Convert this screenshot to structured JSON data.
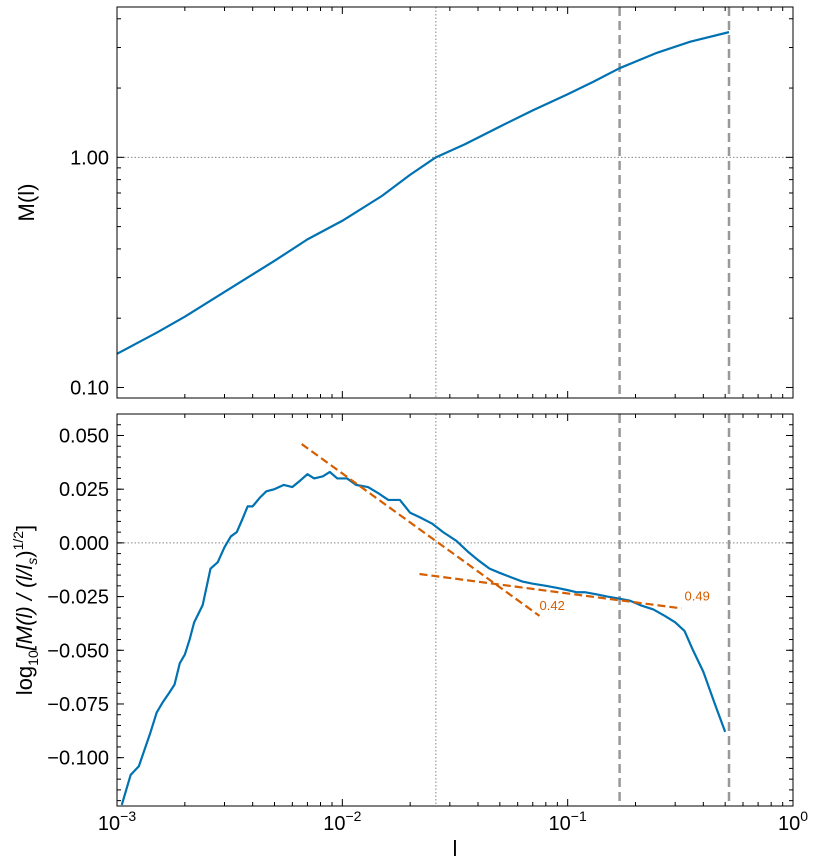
{
  "colors": {
    "series": "#0072b2",
    "fit": "#d55e00",
    "marker": "#999999",
    "reference": "#888888",
    "frame": "#000000"
  },
  "chart_data": [
    {
      "type": "line",
      "panel": "top",
      "title": "",
      "ylabel": "M(l)",
      "xscale": "log",
      "yscale": "log",
      "xlim": [
        0.001,
        1.0
      ],
      "ylim": [
        0.09,
        4.5
      ],
      "yticks": [
        0.1,
        1.0
      ],
      "ytick_labels": [
        "0.10",
        "1.00"
      ],
      "grid": false,
      "reference_lines": {
        "x": 0.026,
        "y": 1.0,
        "style": "dotted"
      },
      "marker_lines": {
        "x": [
          0.17,
          0.52
        ],
        "style": "dashed"
      },
      "series": [
        {
          "x": [
            0.001,
            0.0012,
            0.0015,
            0.002,
            0.003,
            0.005,
            0.007,
            0.01,
            0.015,
            0.02,
            0.026,
            0.035,
            0.05,
            0.07,
            0.1,
            0.13,
            0.17,
            0.25,
            0.35,
            0.52
          ],
          "y": [
            0.14,
            0.154,
            0.173,
            0.203,
            0.26,
            0.355,
            0.44,
            0.53,
            0.68,
            0.84,
            1.0,
            1.14,
            1.36,
            1.6,
            1.88,
            2.13,
            2.44,
            2.85,
            3.18,
            3.5
          ]
        }
      ]
    },
    {
      "type": "line",
      "panel": "bottom",
      "title": "",
      "xlabel": "l",
      "ylabel_parts": [
        "log",
        "10",
        "[M(l) / (l/l",
        "s",
        ")",
        "1/2",
        "]"
      ],
      "xscale": "log",
      "xlim": [
        0.001,
        1.0
      ],
      "xticks": [
        0.001,
        0.01,
        0.1,
        1.0
      ],
      "xtick_labels": [
        {
          "base": "10",
          "exp": "−3"
        },
        {
          "base": "10",
          "exp": "−2"
        },
        {
          "base": "10",
          "exp": "−1"
        },
        {
          "base": "10",
          "exp": "0"
        }
      ],
      "ylim": [
        -0.1225,
        0.06
      ],
      "yticks": [
        0.05,
        0.025,
        0.0,
        -0.025,
        -0.05,
        -0.075,
        -0.1
      ],
      "ytick_labels": [
        "0.050",
        "0.025",
        "0.000",
        "−0.025",
        "−0.050",
        "−0.075",
        "−0.100"
      ],
      "grid": false,
      "reference_lines": {
        "x": 0.026,
        "y": 0.0,
        "style": "dotted"
      },
      "marker_lines": {
        "x": [
          0.17,
          0.52
        ],
        "style": "dashed"
      },
      "series": [
        {
          "x": [
            0.00105,
            0.00115,
            0.00125,
            0.0014,
            0.0015,
            0.0016,
            0.0017,
            0.0018,
            0.0019,
            0.002,
            0.0021,
            0.0022,
            0.0024,
            0.0026,
            0.0028,
            0.003,
            0.0032,
            0.0034,
            0.0036,
            0.0038,
            0.004,
            0.0043,
            0.0046,
            0.005,
            0.0055,
            0.006,
            0.0065,
            0.007,
            0.0075,
            0.0082,
            0.0088,
            0.0095,
            0.0105,
            0.0115,
            0.013,
            0.0145,
            0.016,
            0.018,
            0.02,
            0.022,
            0.025,
            0.028,
            0.032,
            0.036,
            0.04,
            0.045,
            0.05,
            0.056,
            0.063,
            0.07,
            0.08,
            0.09,
            0.1,
            0.11,
            0.12,
            0.135,
            0.15,
            0.17,
            0.19,
            0.21,
            0.24,
            0.27,
            0.3,
            0.33,
            0.36,
            0.4,
            0.45,
            0.5
          ],
          "y": [
            -0.122,
            -0.108,
            -0.104,
            -0.089,
            -0.079,
            -0.074,
            -0.07,
            -0.066,
            -0.056,
            -0.052,
            -0.045,
            -0.037,
            -0.029,
            -0.012,
            -0.009,
            -0.002,
            0.003,
            0.005,
            0.011,
            0.017,
            0.017,
            0.021,
            0.024,
            0.025,
            0.027,
            0.026,
            0.029,
            0.032,
            0.03,
            0.031,
            0.033,
            0.03,
            0.03,
            0.027,
            0.026,
            0.023,
            0.02,
            0.02,
            0.014,
            0.012,
            0.009,
            0.005,
            0.001,
            -0.004,
            -0.008,
            -0.012,
            -0.014,
            -0.016,
            -0.018,
            -0.019,
            -0.02,
            -0.021,
            -0.022,
            -0.023,
            -0.023,
            -0.024,
            -0.025,
            -0.026,
            -0.027,
            -0.029,
            -0.031,
            -0.034,
            -0.037,
            -0.041,
            -0.05,
            -0.06,
            -0.075,
            -0.088
          ]
        }
      ],
      "fits": [
        {
          "label": "",
          "x": [
            0.0066,
            0.075
          ],
          "y": [
            0.046,
            -0.034
          ]
        },
        {
          "label": "",
          "x": [
            0.022,
            0.32
          ],
          "y": [
            -0.0145,
            -0.0305
          ]
        }
      ],
      "annotations": [
        {
          "text": "0.42",
          "x": 0.075,
          "y": -0.029
        },
        {
          "text": "0.49",
          "x": 0.33,
          "y": -0.0245
        }
      ]
    }
  ]
}
